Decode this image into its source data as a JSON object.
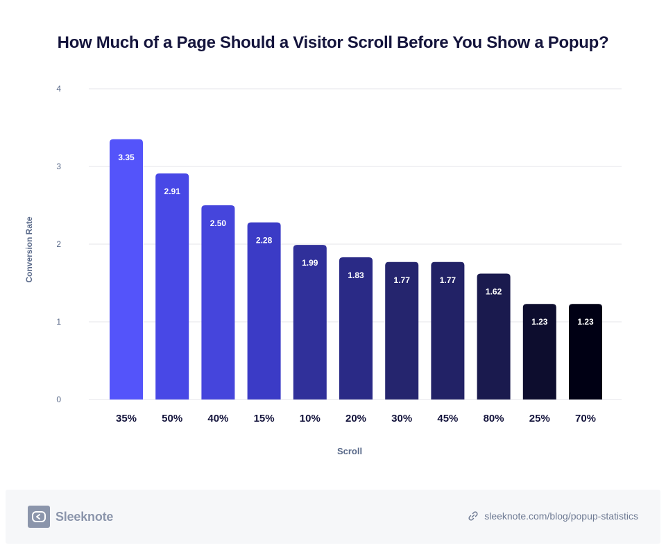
{
  "chart_data": {
    "type": "bar",
    "title": "How Much of a Page Should a Visitor Scroll Before You Show a Popup?",
    "xlabel": "Scroll",
    "ylabel": "Conversion Rate",
    "categories": [
      "35%",
      "50%",
      "40%",
      "15%",
      "10%",
      "20%",
      "30%",
      "45%",
      "80%",
      "25%",
      "70%"
    ],
    "values": [
      3.35,
      2.91,
      2.5,
      2.28,
      1.99,
      1.83,
      1.77,
      1.77,
      1.62,
      1.23,
      1.23
    ],
    "value_labels": [
      "3.35",
      "2.91",
      "2.50",
      "2.28",
      "1.99",
      "1.83",
      "1.77",
      "1.77",
      "1.62",
      "1.23",
      "1.23"
    ],
    "bar_colors": [
      "#5454fa",
      "#4848e6",
      "#4545dc",
      "#3b3bc6",
      "#30309a",
      "#2a2a86",
      "#25256e",
      "#222266",
      "#1a1a4e",
      "#0d0d2e",
      "#000014"
    ],
    "ylim": [
      0,
      4
    ],
    "yticks": [
      0,
      1,
      2,
      3,
      4
    ],
    "grid": true,
    "legend": "none"
  },
  "footer": {
    "brand": "Sleeknote",
    "source": "sleeknote.com/blog/popup-statistics",
    "brand_icon": "sleeknote-logo-icon",
    "link_icon": "link-icon"
  }
}
